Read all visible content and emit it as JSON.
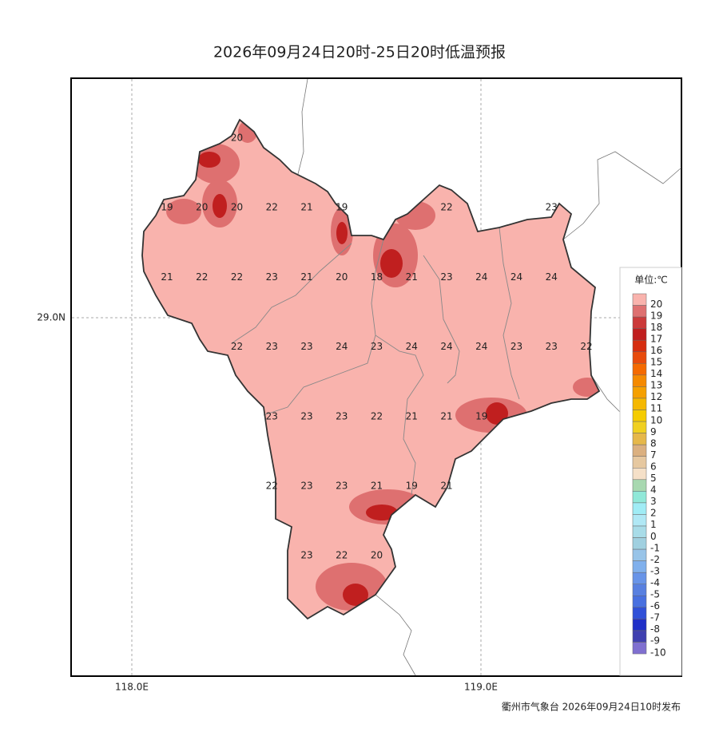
{
  "title": "2026年09月24日20时-25日20时低温预报",
  "footer": "衢州市气象台 2026年09月24日10时发布",
  "axes": {
    "x_labels": [
      "118.0E",
      "119.0E"
    ],
    "y_labels": [
      "29.0N"
    ]
  },
  "grid_values": [
    [
      null,
      null,
      20,
      null,
      null,
      null,
      null,
      null,
      null,
      null,
      null,
      null,
      null
    ],
    [
      19,
      20,
      20,
      22,
      21,
      19,
      null,
      null,
      22,
      null,
      null,
      23,
      null
    ],
    [
      21,
      22,
      22,
      23,
      21,
      20,
      18,
      21,
      23,
      24,
      24,
      24,
      null
    ],
    [
      null,
      null,
      22,
      23,
      23,
      24,
      23,
      24,
      24,
      24,
      23,
      23,
      22
    ],
    [
      null,
      null,
      null,
      23,
      23,
      23,
      22,
      21,
      21,
      19,
      null,
      null,
      null
    ],
    [
      null,
      null,
      null,
      22,
      23,
      23,
      21,
      19,
      21,
      null,
      null,
      null,
      null
    ],
    [
      null,
      null,
      null,
      null,
      23,
      22,
      20,
      null,
      null,
      null,
      null,
      null,
      null
    ]
  ],
  "legend": {
    "title": "单位:℃",
    "levels": [
      20,
      19,
      18,
      17,
      16,
      15,
      14,
      13,
      12,
      11,
      10,
      9,
      8,
      7,
      6,
      5,
      4,
      3,
      2,
      1,
      0,
      -1,
      -2,
      -3,
      -4,
      -5,
      -6,
      -7,
      -8,
      -9,
      -10
    ],
    "colors": [
      "#f9b3ad",
      "#de7070",
      "#cc3a3a",
      "#c01f1f",
      "#d62e10",
      "#e84b0c",
      "#f56a00",
      "#f58a00",
      "#f5a000",
      "#f5b800",
      "#f5cc00",
      "#f0d020",
      "#e6b84a",
      "#dbb080",
      "#e6c8a0",
      "#f5e0c8",
      "#a8d8b0",
      "#90e8d8",
      "#a0ecf5",
      "#b0e8f5",
      "#a8dce8",
      "#a0d0e0",
      "#98c4e8",
      "#80b0ec",
      "#6894e8",
      "#5880e0",
      "#4870e0",
      "#3050d8",
      "#2030c8",
      "#4040b0",
      "#8070d0"
    ]
  }
}
